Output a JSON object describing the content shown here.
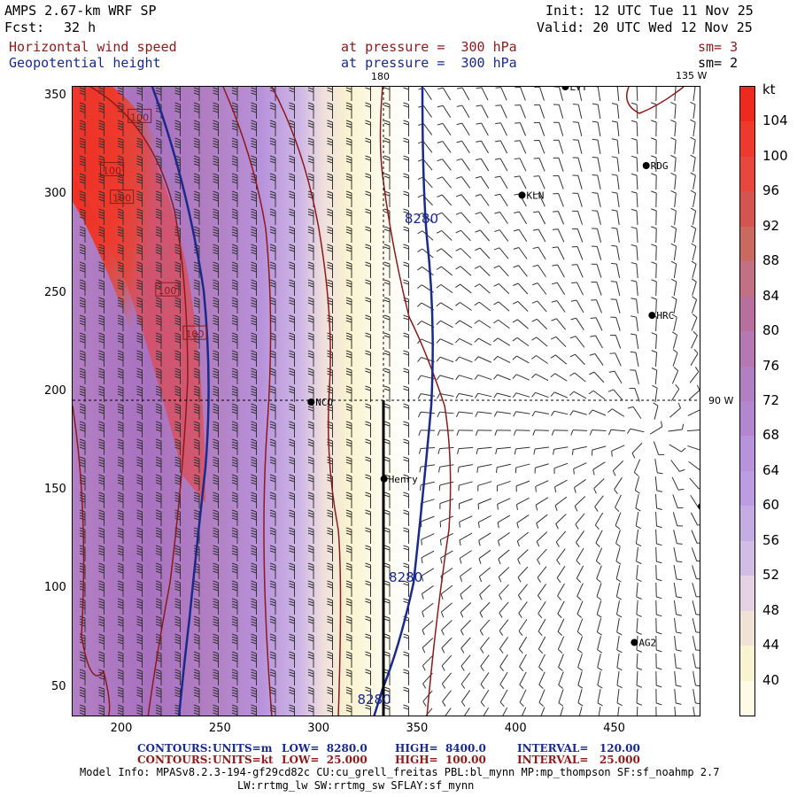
{
  "header": {
    "model": "AMPS 2.67-km WRF SP",
    "init": "Init: 12 UTC Tue 11 Nov 25",
    "fcst_label": "Fcst:",
    "fcst_value": "32 h",
    "valid": "Valid: 20 UTC Wed 12 Nov 25",
    "field1": "Horizontal wind speed",
    "field1_level": "at pressure =  300 hPa",
    "field1_sm": "sm= 3",
    "field2": "Geopotential height",
    "field2_level": "at pressure =  300 hPa",
    "field2_sm": "sm= 2"
  },
  "map": {
    "lon_top": "180",
    "lon_topright": "135 W",
    "lon_right": "90 W",
    "stations": [
      {
        "name": "LVT",
        "x": 425,
        "y": 355
      },
      {
        "name": "RDG",
        "x": 466,
        "y": 315
      },
      {
        "name": "KLN",
        "x": 403,
        "y": 300
      },
      {
        "name": "HRC",
        "x": 469,
        "y": 239
      },
      {
        "name": "NCO",
        "x": 296,
        "y": 195
      },
      {
        "name": "Henry",
        "x": 333,
        "y": 156
      },
      {
        "name": "AG2",
        "x": 460,
        "y": 73
      },
      {
        "name": "",
        "x": 494,
        "y": 142
      }
    ],
    "contour_labels": [
      {
        "text": "8280",
        "x": 352,
        "y": 288
      },
      {
        "text": "8280",
        "x": 344,
        "y": 106
      },
      {
        "text": "8280",
        "x": 328,
        "y": 44
      },
      {
        "text": "100",
        "x": 209,
        "y": 340
      },
      {
        "text": "100",
        "x": 195,
        "y": 313
      },
      {
        "text": "100",
        "x": 200,
        "y": 299
      },
      {
        "text": "100",
        "x": 223,
        "y": 252
      },
      {
        "text": "100",
        "x": 237,
        "y": 230
      }
    ]
  },
  "axes": {
    "x_ticks": [
      "200",
      "250",
      "300",
      "350",
      "400",
      "450"
    ],
    "y_ticks": [
      "350",
      "300",
      "250",
      "200",
      "150",
      "100",
      "50"
    ]
  },
  "colorbar": {
    "unit": "kt",
    "labels": [
      "104",
      "100",
      "96",
      "92",
      "88",
      "84",
      "80",
      "76",
      "72",
      "68",
      "64",
      "60",
      "56",
      "52",
      "48",
      "44",
      "40"
    ],
    "colors": [
      "#ee2a1f",
      "#ee3a2e",
      "#e7473c",
      "#d4554f",
      "#c9695f",
      "#c17086",
      "#b86f9e",
      "#b578b3",
      "#b27fc3",
      "#b386cf",
      "#b892da",
      "#bc9de1",
      "#c5ace5",
      "#d2bde6",
      "#e5d3e3",
      "#f0e3d6",
      "#faf3cf",
      "#fdfbe6"
    ]
  },
  "footer": {
    "c1_title": "CONTOURS:",
    "c1_units": "UNITS=m",
    "c1_low": "LOW=  8280.0",
    "c1_high": "HIGH=  8400.0",
    "c1_int": "INTERVAL=   120.00",
    "c2_title": "CONTOURS:",
    "c2_units": "UNITS=kt",
    "c2_low": "LOW=  25.000",
    "c2_high": "HIGH=  100.00",
    "c2_int": "INTERVAL=   25.000",
    "model_info": "Model Info: MPASv8.2.3-194-gf29cd82c CU:cu_grell_freitas PBL:bl_mynn MP:mp_thompson SF:sf_noahmp 2.7",
    "model_info2": "LW:rrtmg_lw SW:rrtmg_sw SFLAY:sf_mynn"
  }
}
